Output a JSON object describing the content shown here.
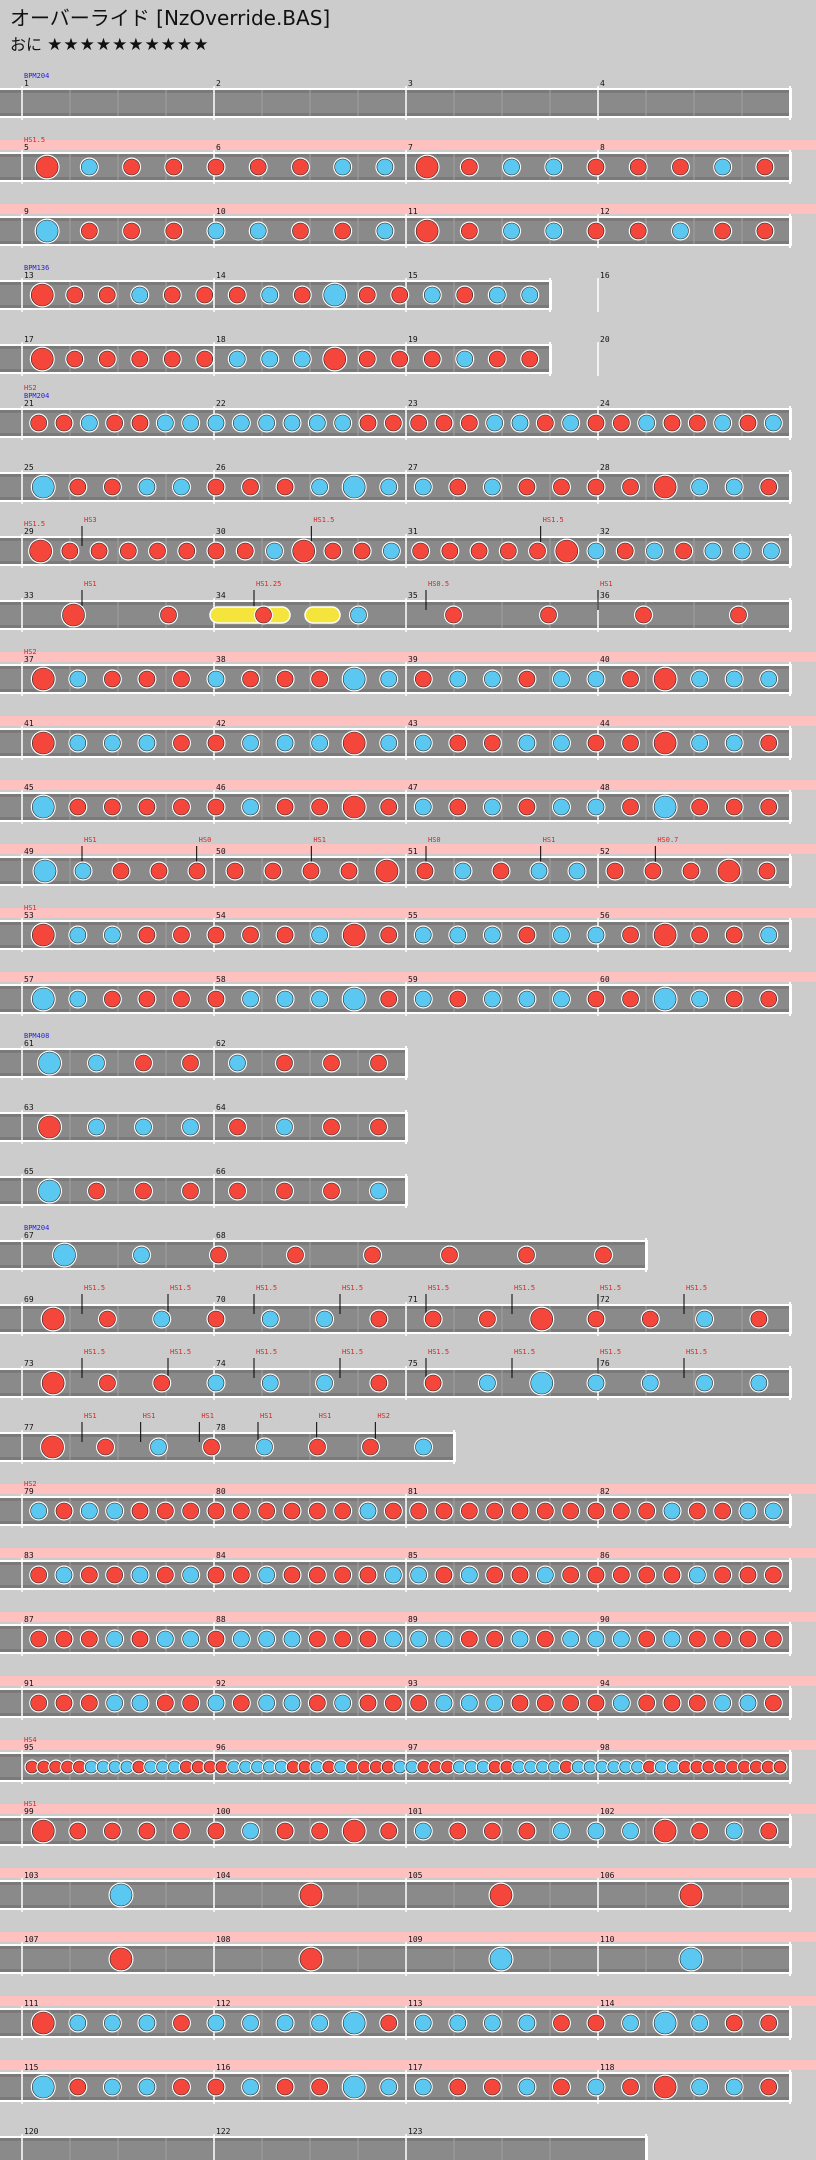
{
  "header": {
    "title": "オーバーライド [NzOverride.BAS]",
    "difficulty": "おに",
    "stars": "★★★★★★★★★★",
    "star_count": 10
  },
  "colors": {
    "background": "#cccccc",
    "lane": "#7a7a7a",
    "lane_border": "#ffffff",
    "gogo_band": "#ffc0c0",
    "don": "#f5463c",
    "ka": "#5ac8f0",
    "drumroll": "#f5e43c",
    "bpm_text": "#2222dd",
    "hs_text": "#dd2222",
    "bar_text": "#111111",
    "end_line": "#ffffff"
  },
  "chart_data": {
    "type": "taiko-score",
    "measures_per_row": 4,
    "rows": [
      {
        "bars": [
          1,
          2,
          3,
          4
        ],
        "gogo": false,
        "bpm": "BPM204",
        "hs": "",
        "density": 0,
        "rest": true
      },
      {
        "bars": [
          5,
          6,
          7,
          8
        ],
        "gogo": true,
        "bpm": "",
        "hs": "HS1.5",
        "density": 18
      },
      {
        "bars": [
          9,
          10,
          11,
          12
        ],
        "gogo": true,
        "bpm": "",
        "hs": "",
        "density": 18
      },
      {
        "bars": [
          13,
          14,
          15,
          16
        ],
        "gogo": false,
        "bpm": "BPM136",
        "hs": "",
        "density": 16,
        "width_bars": 2.75
      },
      {
        "bars": [
          17,
          18,
          19,
          20
        ],
        "gogo": false,
        "bpm": "",
        "hs": "",
        "density": 16,
        "width_bars": 2.75
      },
      {
        "bars": [
          21,
          22,
          23,
          24
        ],
        "gogo": false,
        "bpm": "BPM204",
        "hs": "HS2",
        "density": 30
      },
      {
        "bars": [
          25,
          26,
          27,
          28
        ],
        "gogo": false,
        "bpm": "",
        "hs": "",
        "density": 22
      },
      {
        "bars": [
          29,
          30,
          31,
          32
        ],
        "gogo": false,
        "bpm": "",
        "hs": "HS1.5",
        "density": 26,
        "mid_labels": [
          "HS3",
          "HS1.5",
          "HS1.5"
        ]
      },
      {
        "bars": [
          33,
          34,
          35,
          36
        ],
        "gogo": false,
        "bpm": "",
        "hs": "",
        "density": 8,
        "mid_labels": [
          "HS1",
          "HS1.25",
          "HS0.5",
          "HS1"
        ],
        "rolls": true
      },
      {
        "bars": [
          37,
          38,
          39,
          40
        ],
        "gogo": true,
        "bpm": "",
        "hs": "HS2",
        "density": 22
      },
      {
        "bars": [
          41,
          42,
          43,
          44
        ],
        "gogo": true,
        "bpm": "",
        "hs": "",
        "density": 22
      },
      {
        "bars": [
          45,
          46,
          47,
          48
        ],
        "gogo": true,
        "bpm": "",
        "hs": "",
        "density": 22
      },
      {
        "bars": [
          49,
          50,
          51,
          52
        ],
        "gogo": true,
        "bpm": "",
        "hs": "",
        "density": 20,
        "mid_labels": [
          "HS1",
          "HS0",
          "HS1",
          "HS0",
          "HS1",
          "HS0.7"
        ]
      },
      {
        "bars": [
          53,
          54,
          55,
          56
        ],
        "gogo": true,
        "bpm": "",
        "hs": "HS1",
        "density": 22
      },
      {
        "bars": [
          57,
          58,
          59,
          60
        ],
        "gogo": true,
        "bpm": "",
        "hs": "",
        "density": 22
      },
      {
        "bars": [
          61,
          62
        ],
        "gogo": false,
        "bpm": "BPM408",
        "hs": "",
        "density": 8
      },
      {
        "bars": [
          63,
          64
        ],
        "gogo": false,
        "bpm": "",
        "hs": "",
        "density": 8
      },
      {
        "bars": [
          65,
          66
        ],
        "gogo": false,
        "bpm": "",
        "hs": "",
        "density": 8
      },
      {
        "bars": [
          67,
          68
        ],
        "gogo": false,
        "bpm": "BPM204",
        "hs": "",
        "density": 8,
        "width_bars": 3.25
      },
      {
        "bars": [
          69,
          70,
          71,
          72
        ],
        "gogo": false,
        "bpm": "",
        "hs": "",
        "density": 14,
        "mid_labels": [
          "HS1.5",
          "HS1.5",
          "HS1.5",
          "HS1.5",
          "HS1.5",
          "HS1.5",
          "HS1.5",
          "HS1.5"
        ]
      },
      {
        "bars": [
          73,
          74,
          75,
          76
        ],
        "gogo": false,
        "bpm": "",
        "hs": "",
        "density": 14,
        "mid_labels": [
          "HS1.5",
          "HS1.5",
          "HS1.5",
          "HS1.5",
          "HS1.5",
          "HS1.5",
          "HS1.5",
          "HS1.5"
        ]
      },
      {
        "bars": [
          77,
          78
        ],
        "gogo": false,
        "bpm": "",
        "hs": "",
        "density": 8,
        "width_bars": 2.25,
        "mid_labels": [
          "HS1",
          "HS1",
          "HS1",
          "HS1",
          "HS1",
          "HS2"
        ]
      },
      {
        "bars": [
          79,
          80,
          81,
          82
        ],
        "gogo": true,
        "bpm": "",
        "hs": "HS2",
        "density": 30
      },
      {
        "bars": [
          83,
          84,
          85,
          86
        ],
        "gogo": true,
        "bpm": "",
        "hs": "",
        "density": 30
      },
      {
        "bars": [
          87,
          88,
          89,
          90
        ],
        "gogo": true,
        "bpm": "",
        "hs": "",
        "density": 30
      },
      {
        "bars": [
          91,
          92,
          93,
          94
        ],
        "gogo": true,
        "bpm": "",
        "hs": "",
        "density": 30
      },
      {
        "bars": [
          95,
          96,
          97,
          98
        ],
        "gogo": true,
        "bpm": "",
        "hs": "HS4",
        "density": 64
      },
      {
        "bars": [
          99,
          100,
          101,
          102
        ],
        "gogo": true,
        "bpm": "",
        "hs": "HS1",
        "density": 22
      },
      {
        "bars": [
          103,
          104,
          105,
          106
        ],
        "gogo": true,
        "bpm": "",
        "hs": "",
        "density": 4,
        "big": true
      },
      {
        "bars": [
          107,
          108,
          109,
          110
        ],
        "gogo": true,
        "bpm": "",
        "hs": "",
        "density": 4,
        "big": true
      },
      {
        "bars": [
          111,
          112,
          113,
          114
        ],
        "gogo": true,
        "bpm": "",
        "hs": "",
        "density": 22
      },
      {
        "bars": [
          115,
          116,
          117,
          118
        ],
        "gogo": true,
        "bpm": "",
        "hs": "",
        "density": 22
      },
      {
        "bars": [
          120,
          122,
          123
        ],
        "gogo": false,
        "bpm": "",
        "hs": "",
        "density": 0,
        "width_bars": 3.25,
        "final": true
      }
    ]
  }
}
